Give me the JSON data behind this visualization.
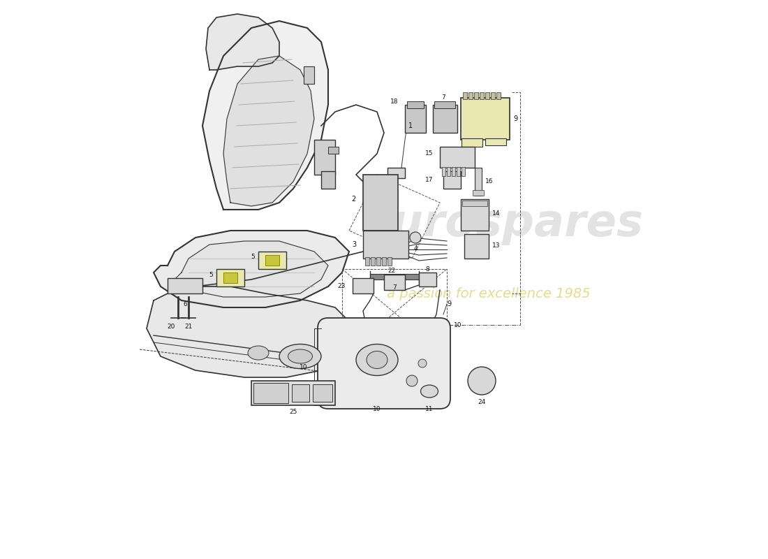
{
  "bg_color": "#ffffff",
  "line_color": "#333333",
  "highlight_color": "#e8e8b0",
  "gray_color": "#d8d8d8",
  "light_gray": "#eeeeee",
  "watermark1": "eurospares",
  "watermark2": "a passion for excellence 1985"
}
